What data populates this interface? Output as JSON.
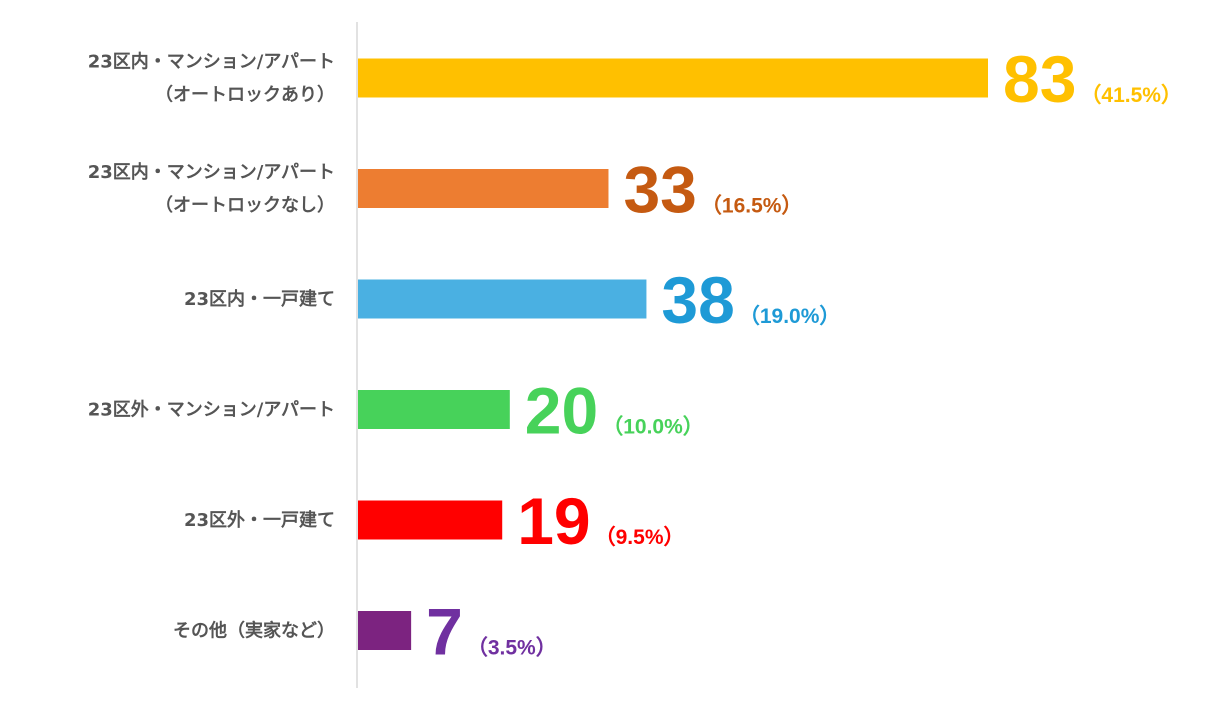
{
  "chart_data": {
    "type": "bar",
    "orientation": "horizontal",
    "categories": [
      [
        "23区内・マンション/アパート",
        "（オートロックあり）"
      ],
      [
        "23区内・マンション/アパート",
        "（オートロックなし）"
      ],
      [
        "23区内・一戸建て"
      ],
      [
        "23区外・マンション/アパート"
      ],
      [
        "23区外・一戸建て"
      ],
      [
        "その他（実家など）"
      ]
    ],
    "values": [
      83,
      33,
      38,
      20,
      19,
      7
    ],
    "percent_labels": [
      "（41.5%）",
      "（16.5%）",
      "（19.0%）",
      "（10.0%）",
      "（9.5%）",
      "（3.5%）"
    ],
    "colors": [
      "#FFC000",
      "#ED7D31",
      "#4AB0E2",
      "#47D25A",
      "#FF0000",
      "#7C2380"
    ],
    "label_colors": [
      "#FFC000",
      "#C55A11",
      "#1E9AD6",
      "#47D25A",
      "#FF0000",
      "#7030A0"
    ],
    "xlim": [
      0,
      83
    ],
    "grid": false,
    "legend": "none",
    "axis_color": "#d9d9d9"
  }
}
